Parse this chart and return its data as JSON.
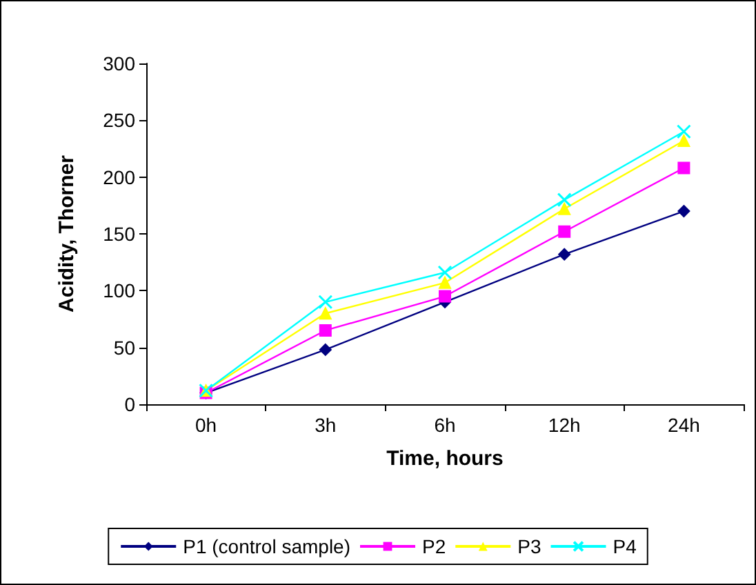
{
  "chart_data": {
    "type": "line",
    "xlabel": "Time, hours",
    "ylabel": "Acidity, Thorner",
    "categories": [
      "0h",
      "3h",
      "6h",
      "12h",
      "24h"
    ],
    "series": [
      {
        "name": "P1 (control sample)",
        "color": "#000080",
        "marker": "diamond",
        "values": [
          10,
          48,
          90,
          132,
          170
        ]
      },
      {
        "name": "P2",
        "color": "#ff00ff",
        "marker": "square",
        "values": [
          10,
          65,
          95,
          152,
          208
        ]
      },
      {
        "name": "P3",
        "color": "#ffff00",
        "marker": "triangle",
        "values": [
          12,
          80,
          107,
          172,
          232
        ]
      },
      {
        "name": "P4",
        "color": "#00ffff",
        "marker": "cross",
        "values": [
          12,
          90,
          116,
          180,
          240
        ]
      }
    ],
    "ylim": [
      0,
      300
    ],
    "yticks": [
      0,
      50,
      100,
      150,
      200,
      250,
      300
    ],
    "grid": false,
    "legend": "bottom"
  }
}
